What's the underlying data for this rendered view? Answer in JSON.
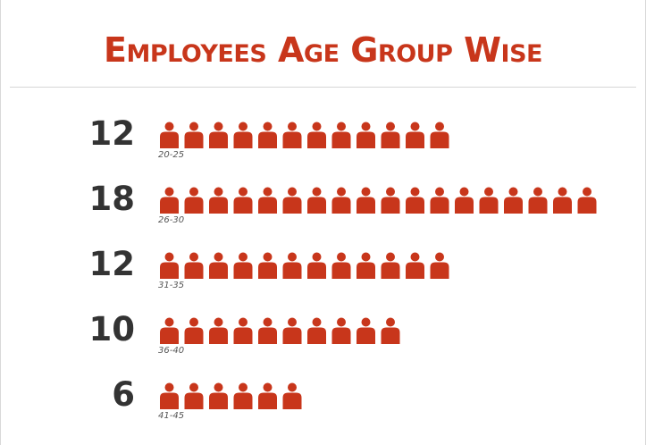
{
  "colors": {
    "accent": "#c8361b",
    "count_text": "#333333"
  },
  "chart_data": {
    "type": "bar",
    "title": "Employees Age Group Wise",
    "categories": [
      "20-25",
      "26-30",
      "31-35",
      "36-40",
      "41-45"
    ],
    "values": [
      12,
      18,
      12,
      10,
      6
    ],
    "value_labels": [
      "12",
      "18",
      "12",
      "10",
      "6"
    ],
    "xlabel": "",
    "ylabel": "",
    "grid": false,
    "icon": "person-icon"
  }
}
